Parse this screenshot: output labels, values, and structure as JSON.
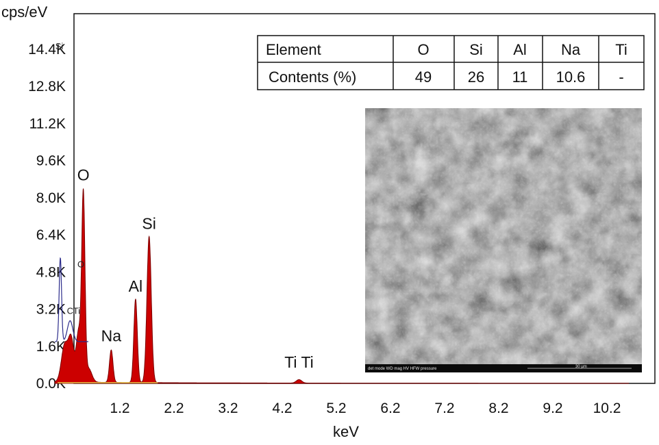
{
  "chart_data": {
    "type": "area",
    "ylabel": "cps/eV",
    "xlabel": "keV",
    "xlim": [
      0.0,
      10.6
    ],
    "ylim": [
      0,
      16000
    ],
    "x_ticks": [
      1.2,
      2.2,
      3.2,
      4.2,
      5.2,
      6.2,
      7.2,
      8.2,
      9.2,
      10.2
    ],
    "x_tick_labels": [
      "1.2",
      "2.2",
      "3.2",
      "4.2",
      "5.2",
      "6.2",
      "7.2",
      "8.2",
      "9.2",
      "10.2"
    ],
    "y_ticks": [
      0,
      1600,
      3200,
      4800,
      6400,
      8000,
      9600,
      11200,
      12800,
      14400
    ],
    "y_tick_labels": [
      "0.0K",
      "1.6K",
      "3.2K",
      "4.8K",
      "6.4K",
      "8.0K",
      "9.6K",
      "11.2K",
      "12.8K",
      "14.4K"
    ],
    "spectrum_fill_color": "#cc0000",
    "spectrum_outline_color": "#2a2a8a",
    "peaks": [
      {
        "label": "O",
        "x": 0.525,
        "y": 8400
      },
      {
        "label": "Na",
        "x": 1.04,
        "y": 1400
      },
      {
        "label": "Al",
        "x": 1.49,
        "y": 3600
      },
      {
        "label": "Si",
        "x": 1.74,
        "y": 6300
      },
      {
        "label": "Ti Ti",
        "x": 4.51,
        "y": 150
      }
    ],
    "minor_labels": [
      {
        "label": "Si",
        "x": 0.08,
        "y": 14400
      },
      {
        "label": "C",
        "x": 0.28,
        "y": 3000
      },
      {
        "label": "Ti",
        "x": 0.4,
        "y": 3000
      },
      {
        "label": "O",
        "x": 0.48,
        "y": 5000
      }
    ],
    "blue_peak": {
      "x": 0.1,
      "y": 5400
    }
  },
  "table": {
    "headers": [
      "Element",
      "O",
      "Si",
      "Al",
      "Na",
      "Ti"
    ],
    "rows": [
      [
        "Contents (%)",
        "49",
        "26",
        "11",
        "10.6",
        "-"
      ]
    ]
  },
  "sem_image": {
    "footer": "det  mode WD     mag  HV     HFW    pressure",
    "scale_bar": "30 µm"
  }
}
